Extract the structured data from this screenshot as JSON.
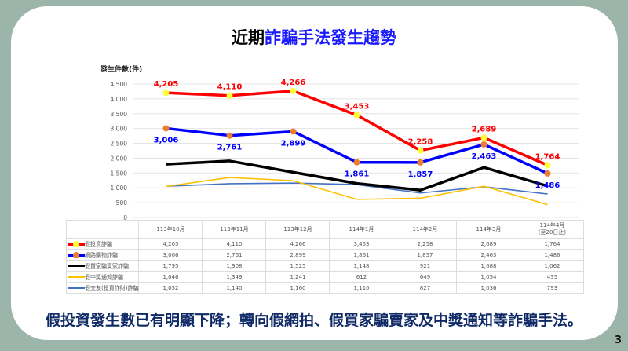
{
  "title": {
    "prefix": "近期",
    "highlight": "詐騙手法發生趨勢"
  },
  "footer": "假投資發生數已有明顯下降；轉向假網拍、假買家騙賣家及中獎通知等詐騙手法。",
  "page_number": "3",
  "chart_data": {
    "type": "line",
    "ylabel": "發生件數(件)",
    "ylim": [
      0,
      4500
    ],
    "yticks": [
      "0",
      "500",
      "1,000",
      "1,500",
      "2,000",
      "2,500",
      "3,000",
      "3,500",
      "4,000",
      "4,500"
    ],
    "grid": true,
    "categories": [
      "113年10月",
      "113年11月",
      "113年12月",
      "114年1月",
      "114年2月",
      "114年3月",
      "114年4月"
    ],
    "category_sublabels": [
      "",
      "",
      "",
      "",
      "",
      "",
      "(至20日止)"
    ],
    "legend_placement": "table",
    "series": [
      {
        "name": "假投資詐騙",
        "color": "#ff0000",
        "marker": "#ffff33",
        "labels": "above",
        "labelColor": "#ff0000",
        "values": [
          4205,
          4110,
          4266,
          3453,
          2258,
          2689,
          1764
        ],
        "display": [
          "4,205",
          "4,110",
          "4,266",
          "3,453",
          "2,258",
          "2,689",
          "1,764"
        ]
      },
      {
        "name": "網路購物詐騙",
        "color": "#0000ff",
        "marker": "#ed7d31",
        "labels": "below",
        "labelColor": "#0000ff",
        "values": [
          3006,
          2761,
          2899,
          1861,
          1857,
          2463,
          1486
        ],
        "display": [
          "3,006",
          "2,761",
          "2,899",
          "1,861",
          "1,857",
          "2,463",
          "1,486"
        ]
      },
      {
        "name": "假買家騙賣家詐騙",
        "color": "#000000",
        "values": [
          1795,
          1908,
          1525,
          1148,
          921,
          1688,
          1062
        ],
        "display": [
          "1,795",
          "1,908",
          "1,525",
          "1,148",
          "921",
          "1,688",
          "1,062"
        ]
      },
      {
        "name": "假中獎通知詐騙",
        "color": "#ffc000",
        "values": [
          1046,
          1349,
          1241,
          612,
          649,
          1054,
          435
        ],
        "display": [
          "1,046",
          "1,349",
          "1,241",
          "612",
          "649",
          "1,054",
          "435"
        ]
      },
      {
        "name": "假交友(投資詐財)詐騙",
        "color": "#4472c4",
        "values": [
          1052,
          1140,
          1160,
          1110,
          827,
          1036,
          793
        ],
        "display": [
          "1,052",
          "1,140",
          "1,160",
          "1,110",
          "827",
          "1,036",
          "793"
        ]
      }
    ]
  }
}
